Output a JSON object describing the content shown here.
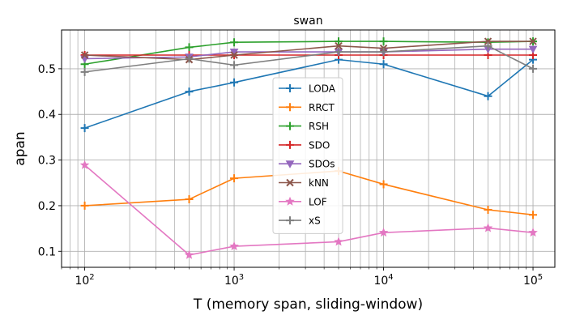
{
  "chart_data": {
    "type": "line",
    "title": "swan",
    "xlabel": "T (memory span, sliding-window)",
    "ylabel": "apan",
    "xscale": "log",
    "xlim": [
      70,
      140000
    ],
    "ylim": [
      0.065,
      0.585
    ],
    "grid": true,
    "legend_position": "center",
    "x": [
      100,
      500,
      1000,
      5000,
      10000,
      50000,
      100000
    ],
    "x_ticks": [
      100,
      1000,
      10000,
      100000
    ],
    "x_tick_labels": [
      {
        "base": "10",
        "exp": "2"
      },
      {
        "base": "10",
        "exp": "3"
      },
      {
        "base": "10",
        "exp": "4"
      },
      {
        "base": "10",
        "exp": "5"
      }
    ],
    "y_ticks": [
      0.1,
      0.2,
      0.3,
      0.4,
      0.5
    ],
    "y_tick_labels": [
      "0.1",
      "0.2",
      "0.3",
      "0.4",
      "0.5"
    ],
    "series": [
      {
        "name": "LODA",
        "color": "#1f77b4",
        "marker": "plus",
        "values": [
          0.37,
          0.45,
          0.47,
          0.52,
          0.51,
          0.44,
          0.52
        ]
      },
      {
        "name": "RRCT",
        "color": "#ff7f0e",
        "marker": "plus",
        "values": [
          0.2,
          0.214,
          0.26,
          0.276,
          0.247,
          0.191,
          0.18
        ]
      },
      {
        "name": "RSH",
        "color": "#2ca02c",
        "marker": "plus",
        "values": [
          0.51,
          0.547,
          0.558,
          0.56,
          0.56,
          0.558,
          0.56
        ]
      },
      {
        "name": "SDO",
        "color": "#d62728",
        "marker": "plus",
        "values": [
          0.53,
          0.53,
          0.53,
          0.53,
          0.53,
          0.53,
          0.53
        ]
      },
      {
        "name": "SDOs",
        "color": "#9467bd",
        "marker": "triangle",
        "values": [
          0.522,
          0.526,
          0.537,
          0.537,
          0.537,
          0.543,
          0.543
        ]
      },
      {
        "name": "kNN",
        "color": "#8c564b",
        "marker": "x",
        "values": [
          0.53,
          0.52,
          0.53,
          0.55,
          0.545,
          0.56,
          0.56
        ]
      },
      {
        "name": "LOF",
        "color": "#e377c2",
        "marker": "star",
        "values": [
          0.289,
          0.092,
          0.111,
          0.121,
          0.141,
          0.151,
          0.141
        ]
      },
      {
        "name": "xS",
        "color": "#7f7f7f",
        "marker": "plus",
        "values": [
          0.493,
          0.522,
          0.508,
          0.537,
          0.537,
          0.55,
          0.5
        ]
      }
    ]
  }
}
